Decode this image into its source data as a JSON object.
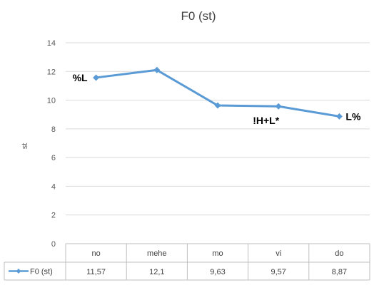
{
  "chart_data": {
    "type": "line",
    "title": "F0 (st)",
    "ylabel": "st",
    "xlabel": "",
    "ylim": [
      0,
      14
    ],
    "yticks": [
      0,
      2,
      4,
      6,
      8,
      10,
      12,
      14
    ],
    "grid": true,
    "categories": [
      "no",
      "mehe",
      "mo",
      "vi",
      "do"
    ],
    "series": [
      {
        "name": "F0 (st)",
        "color": "#5b9bd5",
        "values": [
          11.57,
          12.1,
          9.63,
          9.57,
          8.87
        ],
        "value_labels": [
          "11,57",
          "12,1",
          "9,63",
          "9,57",
          "8,87"
        ]
      }
    ],
    "annotations": [
      {
        "text": "%L",
        "category": "no"
      },
      {
        "text": "!H+L*",
        "category": "vi"
      },
      {
        "text": "L%",
        "category": "do"
      }
    ],
    "data_table": true
  }
}
